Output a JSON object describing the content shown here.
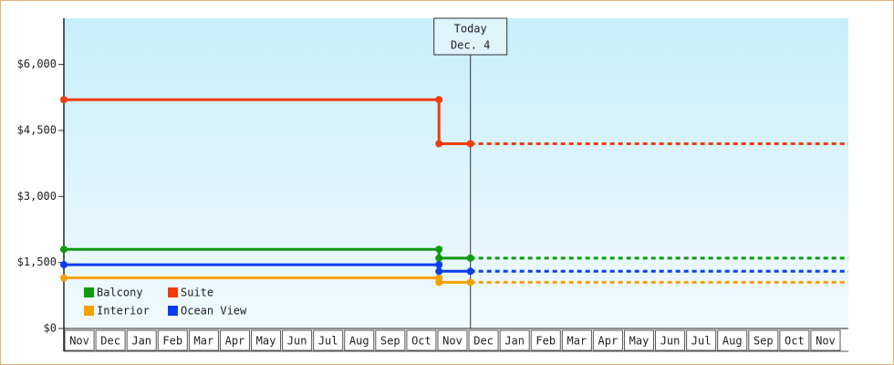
{
  "chart_data": {
    "type": "step-line",
    "xlim": [
      0,
      25.2
    ],
    "ylim": [
      0,
      7050
    ],
    "yticks": [
      {
        "value": 0,
        "label": "$0"
      },
      {
        "value": 1500,
        "label": "$1,500"
      },
      {
        "value": 3000,
        "label": "$3,000"
      },
      {
        "value": 4500,
        "label": "$4,500"
      },
      {
        "value": 6000,
        "label": "$6,000"
      }
    ],
    "categories": [
      "Nov",
      "Dec",
      "Jan",
      "Feb",
      "Mar",
      "Apr",
      "May",
      "Jun",
      "Jul",
      "Aug",
      "Sep",
      "Oct",
      "Nov",
      "Dec",
      "Jan",
      "Feb",
      "Mar",
      "Apr",
      "May",
      "Jun",
      "Jul",
      "Aug",
      "Sep",
      "Oct",
      "Nov"
    ],
    "annotation": {
      "x": 13.06,
      "lines": [
        "Today",
        "Dec. 4"
      ]
    },
    "series": [
      {
        "name": "Balcony",
        "color": "#109a10",
        "x": [
          0,
          12.05,
          12.05,
          13.06
        ],
        "values": [
          1800,
          1800,
          1600,
          1600
        ]
      },
      {
        "name": "Suite",
        "color": "#f03c0a",
        "x": [
          0,
          12.05,
          12.05,
          13.06
        ],
        "values": [
          5200,
          5200,
          4200,
          4200
        ]
      },
      {
        "name": "Interior",
        "color": "#f5a000",
        "x": [
          0,
          12.05,
          12.05,
          13.06
        ],
        "values": [
          1150,
          1150,
          1050,
          1050
        ]
      },
      {
        "name": "Ocean View",
        "color": "#0a3cf0",
        "x": [
          0,
          12.05,
          12.05,
          13.06
        ],
        "values": [
          1450,
          1450,
          1300,
          1300
        ]
      }
    ]
  }
}
